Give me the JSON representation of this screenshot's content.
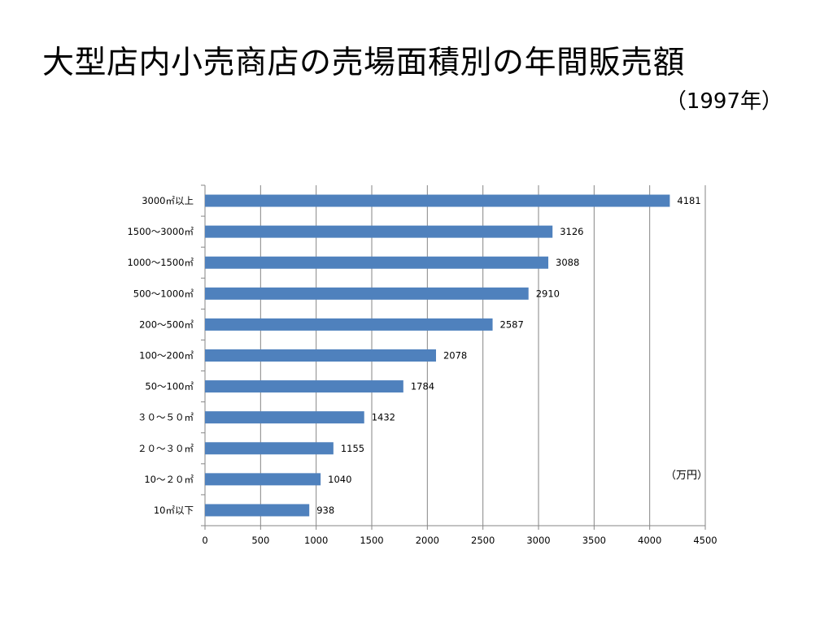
{
  "slide": {
    "title": "大型店内小売商店の売場面積別の年間販売額",
    "subtitle": "（1997年）"
  },
  "chart_data": {
    "type": "bar",
    "orientation": "horizontal",
    "categories": [
      "3000㎡以上",
      "1500～3000㎡",
      "1000～1500㎡",
      "500～1000㎡",
      "200～500㎡",
      "100～200㎡",
      "50～100㎡",
      "３０～５０㎡",
      "２０～３０㎡",
      "10～２０㎡",
      "10㎡以下"
    ],
    "values": [
      4181,
      3126,
      3088,
      2910,
      2587,
      2078,
      1784,
      1432,
      1155,
      1040,
      938
    ],
    "unit_label": "（万円）",
    "xlim": [
      0,
      4500
    ],
    "xticks": [
      0,
      500,
      1000,
      1500,
      2000,
      2500,
      3000,
      3500,
      4000,
      4500
    ],
    "grid": true,
    "bar_color": "#4f81bd",
    "grid_color": "#868686"
  }
}
